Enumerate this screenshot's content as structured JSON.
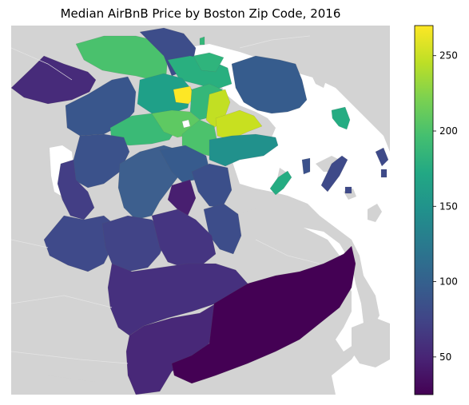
{
  "title": "Median AirBnB Price by Boston Zip Code, 2016",
  "colorbar": {
    "min": 25,
    "max": 270,
    "ticks": [
      50,
      100,
      150,
      200,
      250
    ],
    "colormap": "viridis"
  },
  "colors": {
    "background_land": "#d3d3d3",
    "water": "#ffffff"
  }
}
